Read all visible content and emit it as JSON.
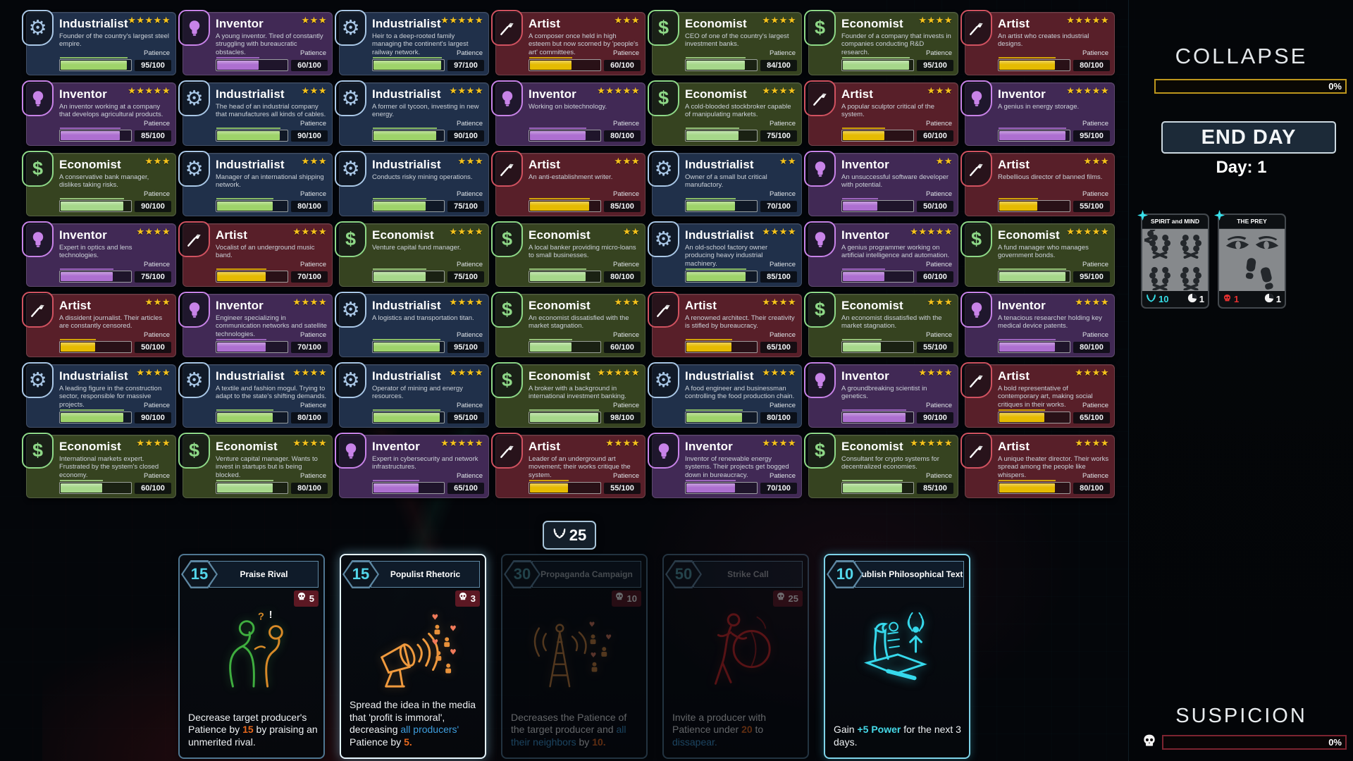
{
  "types": {
    "Industrialist": {
      "bg": "#20304a",
      "border": "#a9c7e6",
      "icon_color": "#a9c7e6",
      "bar": "#9ed36a",
      "icon": "gear"
    },
    "Inventor": {
      "bg": "#412955",
      "border": "#c883e8",
      "icon_color": "#c883e8",
      "bar": "#ad6fd0",
      "icon": "bulb"
    },
    "Artist": {
      "bg": "#581f29",
      "border": "#d05260",
      "icon_color": "#ffffff",
      "bar": "#e5bb02",
      "icon": "brush"
    },
    "Economist": {
      "bg": "#364320",
      "border": "#8ed887",
      "icon_color": "#8ed887",
      "bar": "#a6d78a",
      "icon": "dollar"
    }
  },
  "grid": {
    "patience_label": "Patience",
    "patience_max": 100,
    "cards": [
      {
        "type": "Industrialist",
        "stars": 5,
        "desc": "Founder of the country's largest steel empire.",
        "patience": 95
      },
      {
        "type": "Inventor",
        "stars": 3,
        "desc": "A young inventor. Tired of constantly struggling with bureaucratic obstacles.",
        "patience": 60
      },
      {
        "type": "Industrialist",
        "stars": 5,
        "desc": "Heir to a deep-rooted family managing the continent's largest railway network.",
        "patience": 97
      },
      {
        "type": "Artist",
        "stars": 3,
        "desc": "A composer once held in high esteem but now scorned by 'people's art' committees.",
        "patience": 60
      },
      {
        "type": "Economist",
        "stars": 4,
        "desc": "CEO of one of the country's largest investment banks.",
        "patience": 84
      },
      {
        "type": "Economist",
        "stars": 4,
        "desc": "Founder of a company that invests in companies conducting R&D research.",
        "patience": 95
      },
      {
        "type": "Artist",
        "stars": 5,
        "desc": "An artist who creates industrial designs.",
        "patience": 80
      },
      {
        "type": "Inventor",
        "stars": 5,
        "desc": "An inventor working at a company that develops agricultural products.",
        "patience": 85
      },
      {
        "type": "Industrialist",
        "stars": 3,
        "desc": "The head of an industrial company that manufactures all kinds of cables.",
        "patience": 90
      },
      {
        "type": "Industrialist",
        "stars": 4,
        "desc": "A former oil tycoon, investing in new energy.",
        "patience": 90
      },
      {
        "type": "Inventor",
        "stars": 5,
        "desc": "Working on biotechnology.",
        "patience": 80
      },
      {
        "type": "Economist",
        "stars": 4,
        "desc": "A cold-blooded stockbroker capable of manipulating markets.",
        "patience": 75
      },
      {
        "type": "Artist",
        "stars": 3,
        "desc": "A popular sculptor critical of the system.",
        "patience": 60
      },
      {
        "type": "Inventor",
        "stars": 5,
        "desc": "A genius in energy storage.",
        "patience": 95
      },
      {
        "type": "Economist",
        "stars": 3,
        "desc": "A conservative bank manager, dislikes taking risks.",
        "patience": 90
      },
      {
        "type": "Industrialist",
        "stars": 3,
        "desc": "Manager of an international shipping network.",
        "patience": 80
      },
      {
        "type": "Industrialist",
        "stars": 3,
        "desc": "Conducts risky mining operations.",
        "patience": 75
      },
      {
        "type": "Artist",
        "stars": 3,
        "desc": "An anti-establishment writer.",
        "patience": 85
      },
      {
        "type": "Industrialist",
        "stars": 2,
        "desc": "Owner of a small but critical manufactory.",
        "patience": 70
      },
      {
        "type": "Inventor",
        "stars": 2,
        "desc": "An unsuccessful software developer with potential.",
        "patience": 50
      },
      {
        "type": "Artist",
        "stars": 3,
        "desc": "Rebellious director of banned films.",
        "patience": 55
      },
      {
        "type": "Inventor",
        "stars": 4,
        "desc": "Expert in optics and lens technologies.",
        "patience": 75
      },
      {
        "type": "Artist",
        "stars": 4,
        "desc": "Vocalist of an underground music band.",
        "patience": 70
      },
      {
        "type": "Economist",
        "stars": 4,
        "desc": "Venture capital fund manager.",
        "patience": 75
      },
      {
        "type": "Economist",
        "stars": 2,
        "desc": "A local banker providing micro-loans to small businesses.",
        "patience": 80
      },
      {
        "type": "Industrialist",
        "stars": 4,
        "desc": "An old-school factory owner producing heavy industrial machinery.",
        "patience": 85
      },
      {
        "type": "Inventor",
        "stars": 5,
        "desc": "A genius programmer working on artificial intelligence and automation.",
        "patience": 60
      },
      {
        "type": "Economist",
        "stars": 5,
        "desc": "A fund manager who manages government bonds.",
        "patience": 95
      },
      {
        "type": "Artist",
        "stars": 3,
        "desc": "A dissident journalist. Their articles are constantly censored.",
        "patience": 50
      },
      {
        "type": "Inventor",
        "stars": 4,
        "desc": "Engineer specializing in communication networks and satellite technologies.",
        "patience": 70
      },
      {
        "type": "Industrialist",
        "stars": 4,
        "desc": "A logistics and transportation titan.",
        "patience": 95
      },
      {
        "type": "Economist",
        "stars": 3,
        "desc": "An economist dissatisfied with the market stagnation.",
        "patience": 60
      },
      {
        "type": "Artist",
        "stars": 4,
        "desc": "A renowned architect. Their creativity is stifled by bureaucracy.",
        "patience": 65
      },
      {
        "type": "Economist",
        "stars": 3,
        "desc": "An economist dissatisfied with the market stagnation.",
        "patience": 55
      },
      {
        "type": "Inventor",
        "stars": 4,
        "desc": "A tenacious researcher holding key medical device patents.",
        "patience": 80
      },
      {
        "type": "Industrialist",
        "stars": 4,
        "desc": "A leading figure in the construction sector, responsible for massive projects.",
        "patience": 90
      },
      {
        "type": "Industrialist",
        "stars": 4,
        "desc": "A textile and fashion mogul. Trying to adapt to the state's shifting demands.",
        "patience": 80
      },
      {
        "type": "Industrialist",
        "stars": 4,
        "desc": "Operator of mining and energy resources.",
        "patience": 95
      },
      {
        "type": "Economist",
        "stars": 5,
        "desc": "A broker with a background in international investment banking.",
        "patience": 98
      },
      {
        "type": "Industrialist",
        "stars": 4,
        "desc": "A food engineer and businessman controlling the food production chain.",
        "patience": 80
      },
      {
        "type": "Inventor",
        "stars": 4,
        "desc": "A groundbreaking scientist in genetics.",
        "patience": 90
      },
      {
        "type": "Artist",
        "stars": 4,
        "desc": "A bold representative of contemporary art, making social critiques in their works.",
        "patience": 65
      },
      {
        "type": "Economist",
        "stars": 4,
        "desc": "International markets expert. Frustrated by the system's closed economy.",
        "patience": 60
      },
      {
        "type": "Economist",
        "stars": 4,
        "desc": "Venture capital manager. Wants to invest in startups but is being blocked.",
        "patience": 80
      },
      {
        "type": "Inventor",
        "stars": 5,
        "desc": "Expert in cybersecurity and network infrastructures.",
        "patience": 65
      },
      {
        "type": "Artist",
        "stars": 4,
        "desc": "Leader of an underground art movement; their works critique the system.",
        "patience": 55
      },
      {
        "type": "Inventor",
        "stars": 4,
        "desc": "Inventor of renewable energy systems. Their projects get bogged down in bureaucracy.",
        "patience": 70
      },
      {
        "type": "Economist",
        "stars": 5,
        "desc": "Consultant for crypto systems for decentralized economies.",
        "patience": 85
      },
      {
        "type": "Artist",
        "stars": 4,
        "desc": "A unique theater director. Their works spread among the people like whispers.",
        "patience": 80
      }
    ]
  },
  "power_badge": {
    "value": "25",
    "icon": "laurel-icon"
  },
  "hand": {
    "cards": [
      {
        "cost": "15",
        "title": "Praise Rival",
        "skull": "5",
        "state": "normal",
        "art": "whisper",
        "desc": [
          {
            "t": "Decrease target producer's Patience by ",
            "s": "p"
          },
          {
            "t": "15",
            "s": "o"
          },
          {
            "t": " by praising an unmerited rival.",
            "s": "p"
          }
        ]
      },
      {
        "cost": "15",
        "title": "Populist Rhetoric",
        "skull": "3",
        "state": "selected",
        "art": "megaphone",
        "desc": [
          {
            "t": "Spread the idea in the media that 'profit is immoral', decreasing ",
            "s": "p"
          },
          {
            "t": "all producers'",
            "s": "b"
          },
          {
            "t": " Patience by ",
            "s": "p"
          },
          {
            "t": "5.",
            "s": "o"
          }
        ]
      },
      {
        "cost": "30",
        "title": "Propaganda Campaign",
        "skull": "10",
        "state": "disabled",
        "art": "tower",
        "desc": [
          {
            "t": "Decreases the Patience of the target producer and ",
            "s": "p"
          },
          {
            "t": "all their neighbors",
            "s": "b"
          },
          {
            "t": " by ",
            "s": "p"
          },
          {
            "t": "10.",
            "s": "o"
          }
        ]
      },
      {
        "cost": "50",
        "title": "Strike Call",
        "skull": "25",
        "state": "disabled",
        "art": "strike",
        "desc": [
          {
            "t": "Invite a producer with Patience under ",
            "s": "p"
          },
          {
            "t": "20",
            "s": "o"
          },
          {
            "t": " to ",
            "s": "p"
          },
          {
            "t": "dissapear.",
            "s": "b"
          }
        ]
      },
      {
        "cost": "10",
        "title": "Publish Philosophical Text",
        "skull": null,
        "state": "highlight",
        "art": "publish",
        "desc": [
          {
            "t": "Gain ",
            "s": "p"
          },
          {
            "t": "+5 Power",
            "s": "c"
          },
          {
            "t": " for the next 3 days.",
            "s": "p"
          }
        ]
      }
    ]
  },
  "sidebar": {
    "collapse": {
      "title": "COLLAPSE",
      "percent": "0%",
      "value": 0,
      "bar_color": "#bd961d"
    },
    "end_day_button": "END DAY",
    "day_label": "Day: 1",
    "tokens": [
      {
        "title": "SPIRIT and MIND",
        "left_icon": "laurel-icon",
        "left_value": "10",
        "left_color": "#35dfe8",
        "right_icon": "duration-icon",
        "right_value": "1"
      },
      {
        "title": "THE PREY",
        "left_icon": "skull-icon",
        "left_value": "1",
        "left_color": "#e83030",
        "right_icon": "duration-icon",
        "right_value": "1"
      }
    ],
    "suspicion": {
      "title": "SUSPICION",
      "percent": "0%",
      "value": 0,
      "bar_color": "#7c2430"
    }
  }
}
